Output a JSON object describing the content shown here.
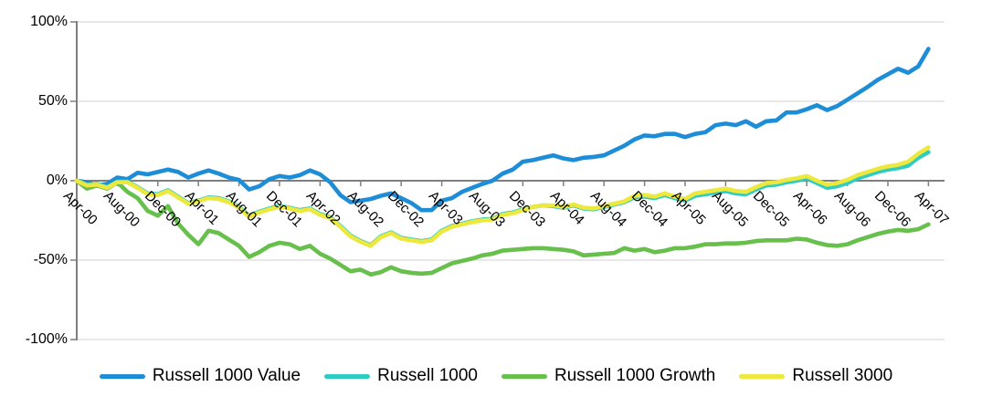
{
  "chart_data": {
    "type": "line",
    "title": "",
    "x_tick_labels": [
      "Apr-00",
      "Aug-00",
      "Dec-00",
      "Apr-01",
      "Aug-01",
      "Dec-01",
      "Apr-02",
      "Aug-02",
      "Dec-02",
      "Apr-03",
      "Aug-03",
      "Dec-03",
      "Apr-04",
      "Aug-04",
      "Dec-04",
      "Apr-05",
      "Aug-05",
      "Dec-05",
      "Apr-06",
      "Aug-06",
      "Dec-06",
      "Apr-07"
    ],
    "months_between_ticks": 4,
    "points_per_series": 85,
    "y_ticks": [
      "100%",
      "50%",
      "0%",
      "-50%",
      "-100%"
    ],
    "y_tick_values": [
      100,
      50,
      0,
      -50,
      -100
    ],
    "ylim": [
      -100,
      100
    ],
    "grid": "horizontal",
    "legend_position": "bottom",
    "series": [
      {
        "name": "Russell 1000 Value",
        "color": "#1e8dd8",
        "values": [
          0,
          -1,
          -3,
          -2,
          2,
          1,
          5,
          4,
          5.5,
          7,
          5.5,
          2,
          4.5,
          6.5,
          4.5,
          2,
          0.5,
          -5.5,
          -3.5,
          1,
          3,
          2,
          3.5,
          6.5,
          4,
          -1,
          -9,
          -13.5,
          -12.5,
          -11.5,
          -9.5,
          -8,
          -11,
          -14,
          -18.5,
          -18.5,
          -12.5,
          -11,
          -7,
          -4.5,
          -2,
          0,
          4.5,
          7,
          12,
          13,
          14.5,
          16,
          14,
          13,
          14.5,
          15,
          16,
          19,
          22,
          26,
          28.5,
          28,
          29.5,
          29.5,
          27.5,
          29.5,
          30.5,
          35,
          36,
          35,
          37.5,
          34,
          37.5,
          38,
          43,
          43,
          45,
          47.5,
          44.5,
          47,
          51,
          55,
          59,
          63.5,
          67,
          70.5,
          68,
          72,
          83
        ]
      },
      {
        "name": "Russell 1000",
        "color": "#2fccc3",
        "values": [
          0,
          -2.5,
          -2,
          -4,
          -0.5,
          -0.5,
          -4,
          -8,
          -8.5,
          -6,
          -10,
          -14,
          -12.5,
          -10.5,
          -11,
          -13,
          -16.5,
          -22,
          -19.5,
          -17.5,
          -16,
          -17,
          -18.5,
          -17.5,
          -21,
          -23,
          -28.5,
          -34.5,
          -38,
          -40.5,
          -35,
          -32.5,
          -36,
          -37,
          -38,
          -37,
          -31.5,
          -28.5,
          -27,
          -25.5,
          -24.5,
          -24,
          -21,
          -20,
          -18,
          -16.5,
          -15.5,
          -16,
          -17,
          -15.5,
          -17.5,
          -18,
          -16.5,
          -15,
          -13.5,
          -10.5,
          -10,
          -11,
          -9,
          -11,
          -12.5,
          -9.5,
          -8.5,
          -7.5,
          -6.5,
          -8,
          -8.5,
          -5.5,
          -3,
          -2.5,
          -1,
          0,
          1.5,
          -1.5,
          -4.5,
          -3.5,
          -1.5,
          1.5,
          3.5,
          5.5,
          7,
          8,
          9.5,
          14.5,
          18
        ]
      },
      {
        "name": "Russell 1000 Growth",
        "color": "#67bf4c",
        "values": [
          0,
          -5,
          -3,
          -5,
          -1,
          -7,
          -11,
          -19,
          -22,
          -16,
          -27,
          -34,
          -40,
          -31.5,
          -33,
          -37,
          -41,
          -48,
          -45,
          -41,
          -39,
          -40,
          -43,
          -41,
          -46,
          -49,
          -53,
          -57,
          -56,
          -59,
          -57.5,
          -54.5,
          -57,
          -58,
          -58.5,
          -58,
          -55,
          -52,
          -50.5,
          -49,
          -47,
          -46,
          -44,
          -43.5,
          -43,
          -42.5,
          -42.5,
          -43,
          -43.5,
          -44.5,
          -47,
          -46.5,
          -46,
          -45.5,
          -42.5,
          -44,
          -43,
          -45,
          -44,
          -42.5,
          -42.5,
          -41.5,
          -40,
          -40,
          -39.5,
          -39.5,
          -39,
          -38,
          -37.5,
          -37.5,
          -37.5,
          -36.5,
          -37,
          -39,
          -40.5,
          -41,
          -40,
          -37.5,
          -35.5,
          -33.5,
          -32,
          -31,
          -31.5,
          -30.5,
          -27.5
        ]
      },
      {
        "name": "Russell 3000",
        "color": "#ece83e",
        "values": [
          0,
          -3,
          -2.5,
          -4.5,
          -1,
          -1,
          -4.5,
          -8.5,
          -9,
          -6.5,
          -10.5,
          -14.5,
          -13,
          -11,
          -11.5,
          -13.5,
          -17,
          -22.5,
          -20,
          -18,
          -16.5,
          -17.5,
          -19,
          -18,
          -21.5,
          -23.5,
          -29,
          -35,
          -38.5,
          -41,
          -35.5,
          -33,
          -36.5,
          -37.5,
          -38.5,
          -37.5,
          -32,
          -29,
          -27.5,
          -26,
          -25,
          -24.5,
          -21.5,
          -20.5,
          -18.5,
          -16.5,
          -15.5,
          -15.5,
          -16.5,
          -15,
          -17,
          -17.5,
          -16,
          -14.5,
          -13,
          -9.5,
          -9,
          -10,
          -8,
          -10,
          -11.5,
          -8,
          -7,
          -6,
          -5,
          -6.5,
          -7,
          -4,
          -1.5,
          -1,
          0.5,
          1.5,
          3,
          0,
          -2.5,
          -1.5,
          0.5,
          3.5,
          5.5,
          7.5,
          9,
          10,
          12,
          17,
          21
        ]
      }
    ]
  },
  "legend": {
    "items": [
      {
        "label": "Russell 1000 Value",
        "color": "#1e8dd8"
      },
      {
        "label": "Russell 1000",
        "color": "#2fccc3"
      },
      {
        "label": "Russell 1000 Growth",
        "color": "#67bf4c"
      },
      {
        "label": "Russell 3000",
        "color": "#ece83e"
      }
    ]
  },
  "colors": {
    "axis": "#7f7f7f",
    "grid": "#d9d9d9",
    "text": "#000000",
    "background": "#ffffff"
  }
}
